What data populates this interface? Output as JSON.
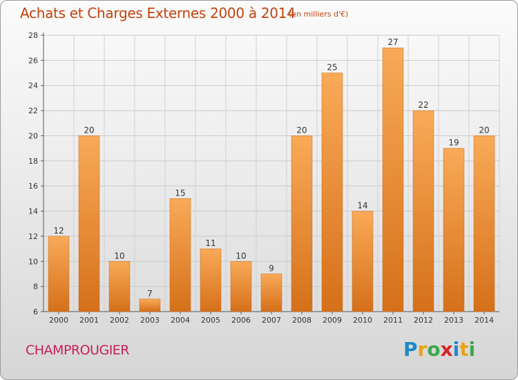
{
  "header": {
    "title": "Achats et Charges Externes 2000 à 2014",
    "unit": "(en milliers d'€)"
  },
  "footer": {
    "commune": "CHAMPROUGIER",
    "logo": "Proxiti"
  },
  "colors": {
    "bar_light": "#f7a552",
    "bar_dark": "#d8711c",
    "title": "#c2410c",
    "commune": "#c81e5a"
  },
  "chart_data": {
    "type": "bar",
    "title": "Achats et Charges Externes 2000 à 2014",
    "subtitle": "(en milliers d'€)",
    "categories": [
      "2000",
      "2001",
      "2002",
      "2003",
      "2004",
      "2005",
      "2006",
      "2007",
      "2008",
      "2009",
      "2010",
      "2011",
      "2012",
      "2013",
      "2014"
    ],
    "values": [
      12,
      20,
      10,
      7,
      15,
      11,
      10,
      9,
      20,
      25,
      14,
      27,
      22,
      19,
      20
    ],
    "ylim": [
      6,
      28
    ],
    "yticks": [
      6,
      8,
      10,
      12,
      14,
      16,
      18,
      20,
      22,
      24,
      26,
      28
    ],
    "grid": true,
    "xlabel": "",
    "ylabel": ""
  }
}
